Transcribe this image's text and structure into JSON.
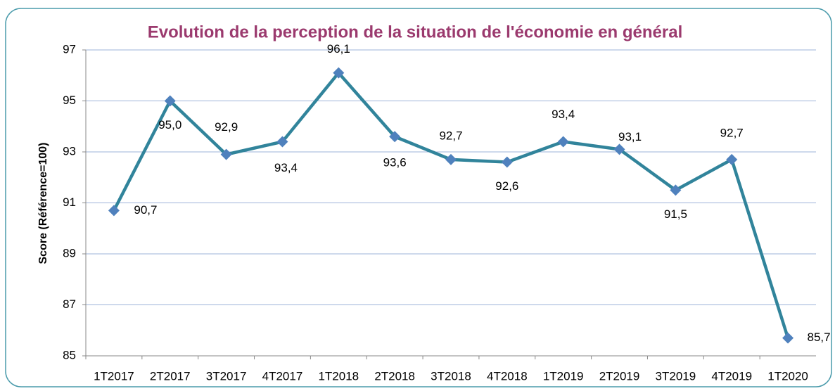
{
  "chart_data": {
    "type": "line",
    "title": "Evolution de la perception de la situation de l'économie en général",
    "ylabel": "Score (Référence=100)",
    "categories": [
      "1T2017",
      "2T2017",
      "3T2017",
      "4T2017",
      "1T2018",
      "2T2018",
      "3T2018",
      "4T2018",
      "1T2019",
      "2T2019",
      "3T2019",
      "4T2019",
      "1T2020"
    ],
    "series": [
      {
        "name": "Score",
        "color": "#31849b",
        "marker_color": "#4f81bd",
        "values": [
          90.7,
          95.0,
          92.9,
          93.4,
          96.1,
          93.6,
          92.7,
          92.6,
          93.4,
          93.1,
          91.5,
          92.7,
          85.7
        ],
        "value_labels": [
          "90,7",
          "95,0",
          "92,9",
          "93,4",
          "96,1",
          "93,6",
          "92,7",
          "92,6",
          "93,4",
          "93,1",
          "91,5",
          "92,7",
          "85,7"
        ]
      }
    ],
    "ylim": [
      85,
      97
    ],
    "yticks": [
      85,
      87,
      89,
      91,
      93,
      95,
      97
    ],
    "grid": true
  }
}
